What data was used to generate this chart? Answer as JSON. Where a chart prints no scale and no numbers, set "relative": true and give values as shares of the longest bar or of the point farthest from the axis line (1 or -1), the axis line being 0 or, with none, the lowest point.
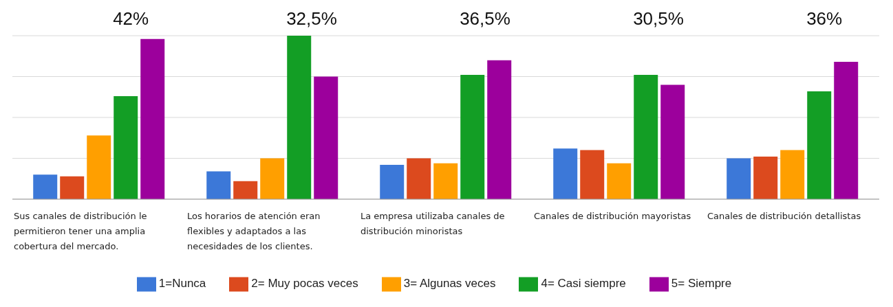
{
  "chart_data": {
    "type": "bar",
    "relative": true,
    "grid": "y",
    "legend": "bottom",
    "categories": [
      "Sus canales de distribución le permitieron tener una amplia cobertura del mercado.",
      "Los horarios de atención eran flexibles  y adaptados a las necesidades de los clientes.",
      "La empresa utilizaba canales de distribución minoristas",
      "Canales de distribución mayoristas",
      "Canales de distribución detallistas"
    ],
    "series": [
      {
        "name": "1=Nunca",
        "color": "#3c78d8",
        "values": [
          0.15,
          0.17,
          0.21,
          0.31,
          0.25
        ]
      },
      {
        "name": "2= Muy pocas veces",
        "color": "#dc4a1e",
        "values": [
          0.14,
          0.11,
          0.25,
          0.3,
          0.26
        ]
      },
      {
        "name": "3= Algunas veces",
        "color": "#ff9f00",
        "values": [
          0.39,
          0.25,
          0.22,
          0.22,
          0.3
        ]
      },
      {
        "name": "4= Casi siempre",
        "color": "#139e25",
        "values": [
          0.63,
          1,
          0.76,
          0.76,
          0.66
        ]
      },
      {
        "name": "5= Siempre",
        "color": "#9c009c",
        "values": [
          0.98,
          0.75,
          0.85,
          0.7,
          0.84
        ]
      }
    ],
    "annotations": [
      "42%",
      "32,5%",
      "36,5%",
      "30,5%",
      "36%"
    ]
  }
}
